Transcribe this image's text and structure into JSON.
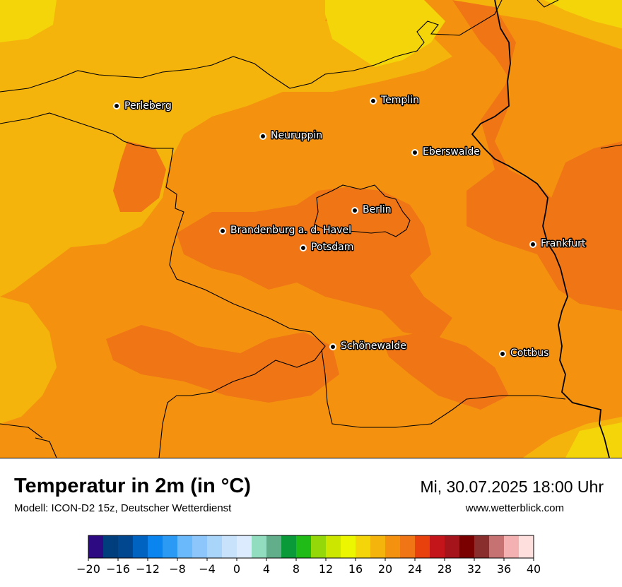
{
  "map": {
    "cities": [
      {
        "name": "Perleberg"
      },
      {
        "name": "Templin"
      },
      {
        "name": "Neuruppin"
      },
      {
        "name": "Eberswalde"
      },
      {
        "name": "Berlin"
      },
      {
        "name": "Brandenburg a. d. Havel"
      },
      {
        "name": "Potsdam"
      },
      {
        "name": "Frankfurt"
      },
      {
        "name": "Schönewalde"
      },
      {
        "name": "Cottbus"
      }
    ]
  },
  "header": {
    "title": "Temperatur in 2m (in °C)",
    "subtitle": "Modell: ICON-D2 15z, Deutscher Wetterdienst",
    "datetime": "Mi, 30.07.2025 18:00 Uhr",
    "website": "www.wetterblick.com"
  },
  "legend": {
    "min": -20,
    "max": 40,
    "step": 2,
    "tick_labels": [
      "−20",
      "−16",
      "−12",
      "−8",
      "−4",
      "0",
      "4",
      "8",
      "12",
      "16",
      "20",
      "24",
      "28",
      "32",
      "36",
      "40"
    ],
    "colors": [
      "#2e0a82",
      "#003e7d",
      "#00478f",
      "#0063c2",
      "#0a85f0",
      "#2b9af5",
      "#6ab9fa",
      "#8cc6fa",
      "#a9d5fb",
      "#c8e2fb",
      "#dcebfd",
      "#92dcbf",
      "#62ae8a",
      "#0a9a3a",
      "#20bb16",
      "#94d80a",
      "#cde600",
      "#ecf600",
      "#f3d509",
      "#f4b40c",
      "#f49210",
      "#f07515",
      "#e8410e",
      "#c4161a",
      "#a6141b",
      "#7a0000",
      "#8a2d2d",
      "#c77272",
      "#f4b1b1",
      "#ffdede"
    ]
  }
}
